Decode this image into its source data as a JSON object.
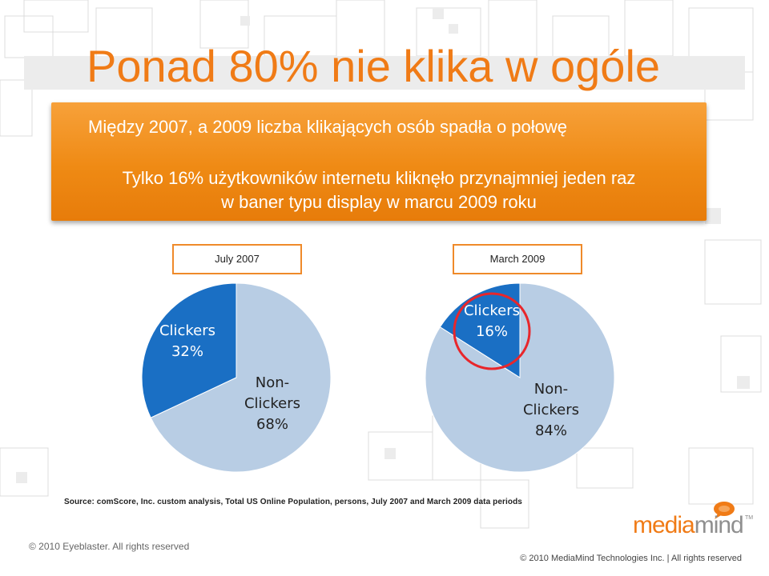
{
  "slide": {
    "title": "Ponad 80% nie klika w ogóle",
    "line1": "Między 2007, a 2009 liczba klikających osób spadła o połowę",
    "line2a": "Tylko 16% użytkowników internetu kliknęło przynajmniej jeden raz",
    "line2b": "w baner typu display w marcu 2009 roku",
    "source": "Source:  comScore, Inc. custom analysis, Total US Online Population, persons, July 2007 and March 2009 data periods",
    "copyright_left": "© 2010 Eyeblaster. All rights reserved",
    "copyright_right": "© 2010 MediaMind Technologies Inc. | All rights reserved",
    "logo_part1": "media",
    "logo_part2": "mind",
    "logo_tm": "TM"
  },
  "colors": {
    "accent": "#f07b16",
    "clickers": "#1a6fc4",
    "non_clickers": "#b8cde4",
    "highlight_ring": "#e8262b"
  },
  "chart_data": [
    {
      "type": "pie",
      "title": "July 2007",
      "labels": [
        "Clickers",
        "Non-Clickers"
      ],
      "label_lines": [
        [
          "Clickers",
          "32%"
        ],
        [
          "Non-",
          "Clickers",
          "68%"
        ]
      ],
      "values": [
        32,
        68
      ]
    },
    {
      "type": "pie",
      "title": "March 2009",
      "labels": [
        "Clickers",
        "Non-Clickers"
      ],
      "label_lines": [
        [
          "Clickers",
          "16%"
        ],
        [
          "Non-",
          "Clickers",
          "84%"
        ]
      ],
      "values": [
        16,
        84
      ],
      "highlight": "Clickers"
    }
  ]
}
